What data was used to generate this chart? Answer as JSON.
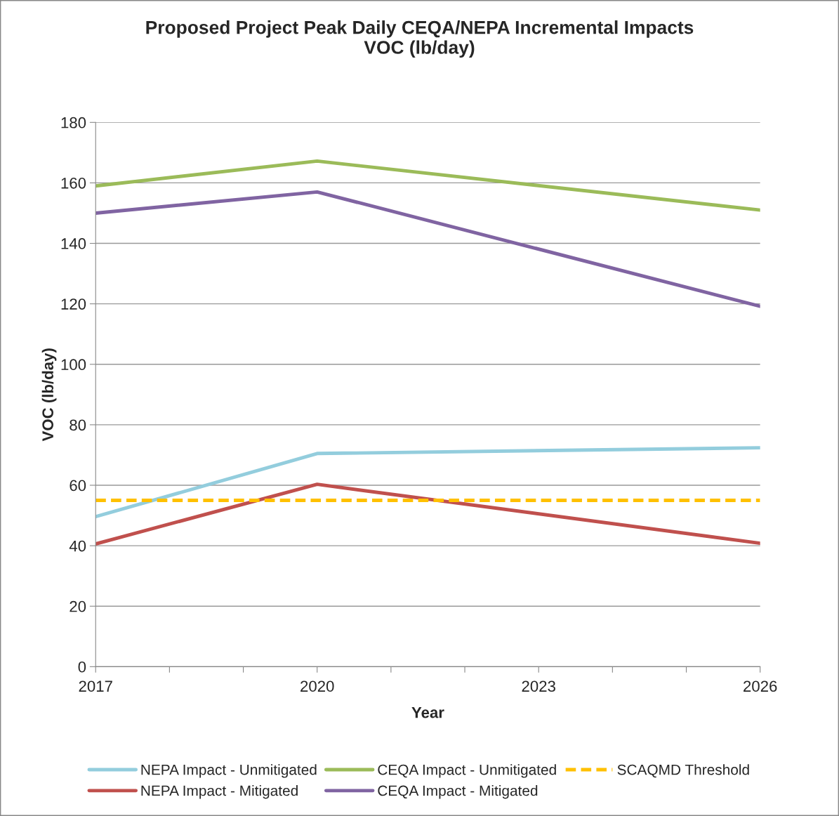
{
  "chart_data": {
    "type": "line",
    "title": "Proposed Project Peak Daily CEQA/NEPA Incremental Impacts\nVOC (lb/day)",
    "xlabel": "Year",
    "ylabel": "VOC (lb/day)",
    "x": [
      2017,
      2020,
      2026
    ],
    "series": [
      {
        "name": "NEPA Impact - Unmitigated",
        "color": "#93cddd",
        "values": [
          49.6,
          70.5,
          72.4
        ]
      },
      {
        "name": "NEPA Impact - Mitigated",
        "color": "#c0504d",
        "values": [
          40.6,
          60.3,
          40.8
        ]
      },
      {
        "name": "CEQA Impact - Unmitigated",
        "color": "#9bbb59",
        "values": [
          159,
          167.2,
          151
        ]
      },
      {
        "name": "CEQA Impact - Mitigated",
        "color": "#8064a2",
        "values": [
          150,
          157,
          119.2
        ]
      },
      {
        "name": "SCAQMD Threshold",
        "color": "#ffc000",
        "x": [
          2017,
          2026
        ],
        "values": [
          55,
          55
        ],
        "line_style": "dashed"
      }
    ],
    "xlim": [
      2017,
      2026
    ],
    "xticks": [
      2017,
      {
        "value": 2018,
        "label": null
      },
      {
        "value": 2019,
        "label": null
      },
      2020,
      {
        "value": 2021,
        "label": null
      },
      {
        "value": 2022,
        "label": null
      },
      2023,
      {
        "value": 2024,
        "label": null
      },
      {
        "value": 2025,
        "label": null
      },
      2026
    ],
    "ylim": [
      0,
      180
    ],
    "yticks": [
      0,
      20,
      40,
      60,
      80,
      100,
      120,
      140,
      160,
      180
    ],
    "grid": "y",
    "legend": "bottom",
    "marker": "none"
  }
}
